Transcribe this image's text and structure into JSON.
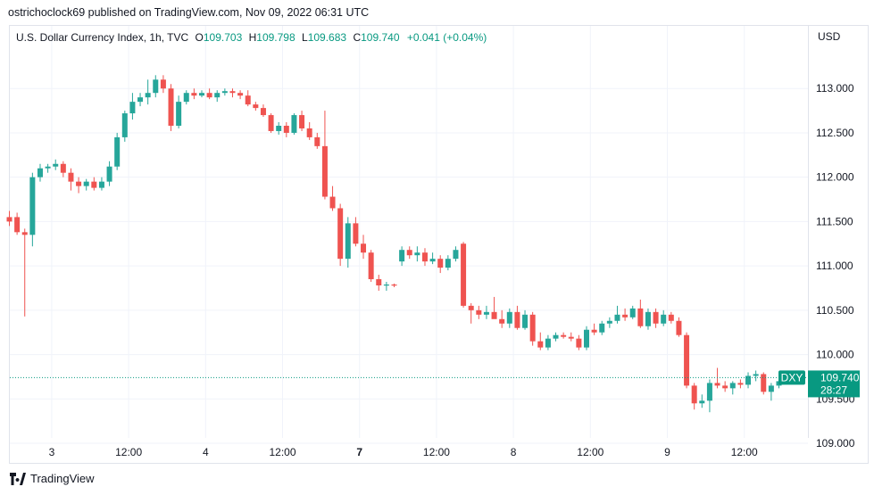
{
  "header": {
    "byline": "ostrichoclock69 published on TradingView.com, Nov 09, 2022 06:31 UTC"
  },
  "legend": {
    "title": "U.S. Dollar Currency Index, 1h, TVC",
    "open_label": "O",
    "open": "109.703",
    "high_label": "H",
    "high": "109.798",
    "low_label": "L",
    "low": "109.683",
    "close_label": "C",
    "close": "109.740",
    "change": "+0.041 (+0.04%)"
  },
  "footer": {
    "brand": "TradingView",
    "logo_icon": "tradingview-logo-icon"
  },
  "colors": {
    "up": "#26a69a",
    "down": "#ef5350",
    "price_tag": "#089981",
    "grid": "#f0f3fa"
  },
  "chart_data": {
    "type": "candlestick",
    "symbol": "DXY",
    "currency_label": "USD",
    "last_price": "109.740",
    "countdown": "28:27",
    "ylim": [
      108.98,
      113.5
    ],
    "y_ticks": [
      "113.000",
      "112.500",
      "112.000",
      "111.500",
      "111.000",
      "110.500",
      "110.000",
      "109.500",
      "109.000"
    ],
    "x_ticks": [
      {
        "label": "3",
        "bold": false,
        "at": 5.5
      },
      {
        "label": "12:00",
        "bold": false,
        "at": 15.5
      },
      {
        "label": "4",
        "bold": false,
        "at": 25.5
      },
      {
        "label": "12:00",
        "bold": false,
        "at": 35.5
      },
      {
        "label": "7",
        "bold": true,
        "at": 45.5
      },
      {
        "label": "12:00",
        "bold": false,
        "at": 55.5
      },
      {
        "label": "8",
        "bold": false,
        "at": 65.5
      },
      {
        "label": "12:00",
        "bold": false,
        "at": 75.5
      },
      {
        "label": "9",
        "bold": false,
        "at": 85.5
      },
      {
        "label": "12:00",
        "bold": false,
        "at": 95.5
      }
    ],
    "candles": [
      [
        111.55,
        111.62,
        111.45,
        111.5
      ],
      [
        111.55,
        111.6,
        111.35,
        111.38
      ],
      [
        111.38,
        111.42,
        110.43,
        111.35
      ],
      [
        111.35,
        112.05,
        111.22,
        112.0
      ],
      [
        112.0,
        112.15,
        111.95,
        112.1
      ],
      [
        112.1,
        112.15,
        112.05,
        112.12
      ],
      [
        112.12,
        112.2,
        112.08,
        112.15
      ],
      [
        112.15,
        112.18,
        112.0,
        112.05
      ],
      [
        112.05,
        112.1,
        111.85,
        111.95
      ],
      [
        111.95,
        112.0,
        111.82,
        111.9
      ],
      [
        111.9,
        111.98,
        111.85,
        111.95
      ],
      [
        111.95,
        112.0,
        111.85,
        111.88
      ],
      [
        111.88,
        112.0,
        111.85,
        111.95
      ],
      [
        111.95,
        112.18,
        111.9,
        112.12
      ],
      [
        112.12,
        112.5,
        112.08,
        112.45
      ],
      [
        112.45,
        112.75,
        112.4,
        112.72
      ],
      [
        112.72,
        112.95,
        112.65,
        112.85
      ],
      [
        112.85,
        112.95,
        112.8,
        112.9
      ],
      [
        112.9,
        113.1,
        112.82,
        112.95
      ],
      [
        112.95,
        113.15,
        112.9,
        113.1
      ],
      [
        113.1,
        113.15,
        112.95,
        113.0
      ],
      [
        113.0,
        113.05,
        112.52,
        112.58
      ],
      [
        112.58,
        112.92,
        112.55,
        112.85
      ],
      [
        112.85,
        112.98,
        112.82,
        112.95
      ],
      [
        112.95,
        113.0,
        112.88,
        112.92
      ],
      [
        112.92,
        112.98,
        112.9,
        112.95
      ],
      [
        112.95,
        113.0,
        112.88,
        112.9
      ],
      [
        112.9,
        112.98,
        112.85,
        112.95
      ],
      [
        112.95,
        113.0,
        112.92,
        112.97
      ],
      [
        112.97,
        113.0,
        112.9,
        112.95
      ],
      [
        112.95,
        112.98,
        112.88,
        112.92
      ],
      [
        112.92,
        112.98,
        112.8,
        112.82
      ],
      [
        112.82,
        112.85,
        112.75,
        112.78
      ],
      [
        112.78,
        112.82,
        112.68,
        112.7
      ],
      [
        112.7,
        112.72,
        112.5,
        112.52
      ],
      [
        112.52,
        112.62,
        112.48,
        112.58
      ],
      [
        112.58,
        112.62,
        112.45,
        112.5
      ],
      [
        112.5,
        112.72,
        112.48,
        112.7
      ],
      [
        112.7,
        112.75,
        112.52,
        112.55
      ],
      [
        112.55,
        112.62,
        112.42,
        112.45
      ],
      [
        112.45,
        112.5,
        112.32,
        112.35
      ],
      [
        112.35,
        112.75,
        111.75,
        111.78
      ],
      [
        111.78,
        111.9,
        111.62,
        111.65
      ],
      [
        111.65,
        111.7,
        111.0,
        111.08
      ],
      [
        111.08,
        111.55,
        110.98,
        111.48
      ],
      [
        111.48,
        111.55,
        111.22,
        111.25
      ],
      [
        111.25,
        111.35,
        111.08,
        111.15
      ],
      [
        111.15,
        111.18,
        110.82,
        110.85
      ],
      [
        110.85,
        110.9,
        110.72,
        110.78
      ],
      [
        110.78,
        110.82,
        110.72,
        110.79
      ],
      [
        110.79,
        110.8,
        110.76,
        110.78
      ],
      [
        111.05,
        111.22,
        111.0,
        111.18
      ],
      [
        111.18,
        111.22,
        111.08,
        111.12
      ],
      [
        111.12,
        111.22,
        111.05,
        111.15
      ],
      [
        111.15,
        111.2,
        111.0,
        111.05
      ],
      [
        111.05,
        111.15,
        111.02,
        111.08
      ],
      [
        111.08,
        111.12,
        110.92,
        110.98
      ],
      [
        110.98,
        111.12,
        110.95,
        111.08
      ],
      [
        111.08,
        111.22,
        111.05,
        111.18
      ],
      [
        111.25,
        111.27,
        110.53,
        110.55
      ],
      [
        110.55,
        110.58,
        110.35,
        110.5
      ],
      [
        110.5,
        110.55,
        110.4,
        110.45
      ],
      [
        110.45,
        110.55,
        110.4,
        110.48
      ],
      [
        110.48,
        110.65,
        110.42,
        110.4
      ],
      [
        110.4,
        110.5,
        110.3,
        110.35
      ],
      [
        110.35,
        110.52,
        110.3,
        110.48
      ],
      [
        110.48,
        110.55,
        110.28,
        110.3
      ],
      [
        110.3,
        110.5,
        110.28,
        110.45
      ],
      [
        110.45,
        110.48,
        110.1,
        110.15
      ],
      [
        110.15,
        110.25,
        110.05,
        110.08
      ],
      [
        110.08,
        110.22,
        110.05,
        110.18
      ],
      [
        110.18,
        110.25,
        110.15,
        110.22
      ],
      [
        110.22,
        110.25,
        110.18,
        110.2
      ],
      [
        110.2,
        110.25,
        110.15,
        110.18
      ],
      [
        110.18,
        110.22,
        110.05,
        110.08
      ],
      [
        110.08,
        110.32,
        110.05,
        110.28
      ],
      [
        110.28,
        110.35,
        110.22,
        110.25
      ],
      [
        110.25,
        110.38,
        110.22,
        110.35
      ],
      [
        110.35,
        110.42,
        110.3,
        110.38
      ],
      [
        110.38,
        110.55,
        110.35,
        110.45
      ],
      [
        110.45,
        110.52,
        110.38,
        110.42
      ],
      [
        110.42,
        110.55,
        110.4,
        110.52
      ],
      [
        110.52,
        110.62,
        110.3,
        110.32
      ],
      [
        110.32,
        110.52,
        110.28,
        110.48
      ],
      [
        110.48,
        110.52,
        110.3,
        110.35
      ],
      [
        110.35,
        110.5,
        110.32,
        110.45
      ],
      [
        110.45,
        110.48,
        110.35,
        110.38
      ],
      [
        110.38,
        110.42,
        110.2,
        110.22
      ],
      [
        110.22,
        110.25,
        109.62,
        109.65
      ],
      [
        109.65,
        109.68,
        109.38,
        109.45
      ],
      [
        109.45,
        109.55,
        109.4,
        109.48
      ],
      [
        109.48,
        109.72,
        109.35,
        109.68
      ],
      [
        109.68,
        109.85,
        109.62,
        109.65
      ],
      [
        109.65,
        109.7,
        109.58,
        109.62
      ],
      [
        109.62,
        109.7,
        109.55,
        109.68
      ],
      [
        109.68,
        109.72,
        109.62,
        109.66
      ],
      [
        109.66,
        109.8,
        109.62,
        109.76
      ],
      [
        109.76,
        109.82,
        109.7,
        109.78
      ],
      [
        109.78,
        109.8,
        109.55,
        109.58
      ],
      [
        109.58,
        109.68,
        109.48,
        109.65
      ],
      [
        109.65,
        109.75,
        109.62,
        109.7
      ],
      [
        109.703,
        109.798,
        109.683,
        109.74
      ]
    ]
  }
}
